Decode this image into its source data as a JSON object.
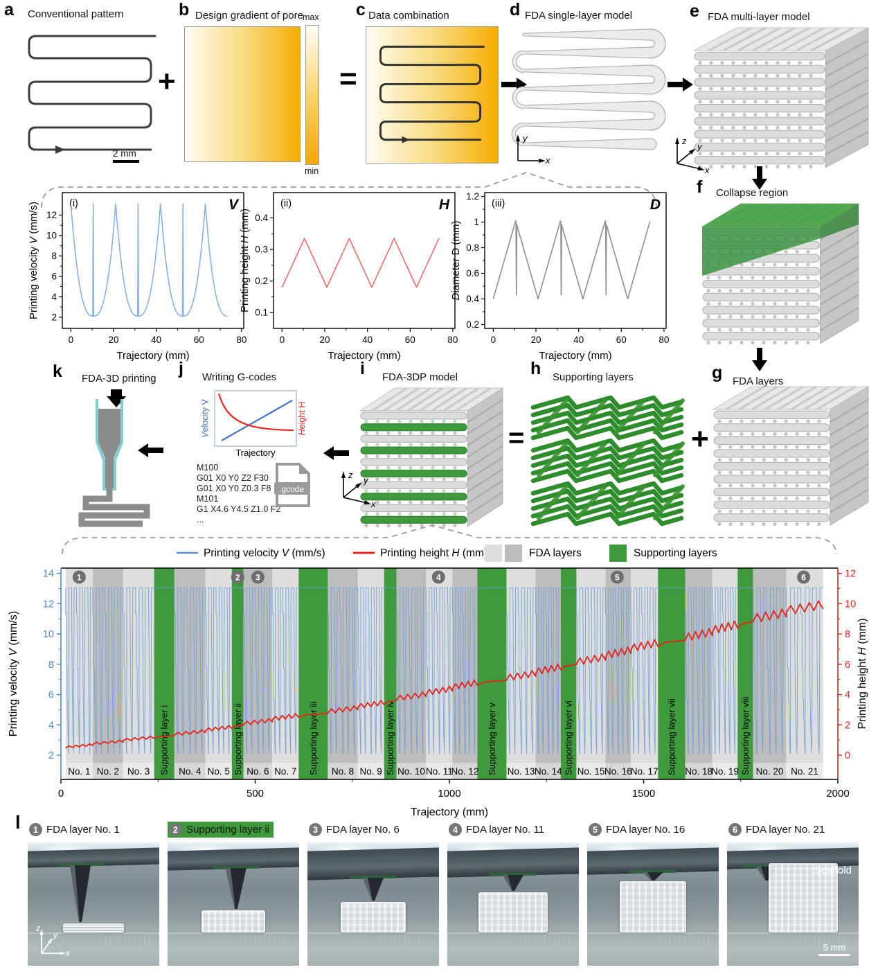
{
  "ops": {
    "plus": "+",
    "equals": "="
  },
  "panels": {
    "a": {
      "letter": "a",
      "title": "Conventional pattern",
      "scale_label": "2 mm"
    },
    "b": {
      "letter": "b",
      "title": "Design gradient of pore",
      "colorbar": {
        "max": "max",
        "min": "min"
      }
    },
    "c": {
      "letter": "c",
      "title": "Data combination"
    },
    "d": {
      "letter": "d",
      "title": "FDA single-layer model",
      "axes": {
        "x": "x",
        "y": "y"
      }
    },
    "e": {
      "letter": "e",
      "title": "FDA multi-layer model",
      "axes": {
        "x": "x",
        "y": "y",
        "z": "z"
      }
    },
    "f": {
      "letter": "f",
      "title": "Collapse region"
    },
    "g": {
      "letter": "g",
      "title": "FDA layers"
    },
    "h": {
      "letter": "h",
      "title": "Supporting layers"
    },
    "i": {
      "letter": "i",
      "title": "FDA-3DP model",
      "axes": {
        "x": "x",
        "y": "y",
        "z": "z"
      }
    },
    "j": {
      "letter": "j",
      "title": "Writing G-codes",
      "mini_chart": {
        "left_label": "Velocity V",
        "left_var": "V",
        "right_label": "Height H",
        "right_var": "H",
        "xlabel": "Trajectory"
      },
      "gcode_lines": [
        "M100",
        "G01 X0 Y0 Z2 F30",
        "G01 X0 Y0 Z0.3 F8",
        "M101",
        "G1 X4.6 Y4.5 Z1.0 F2",
        "..."
      ],
      "file_label": ".gcode"
    },
    "k": {
      "letter": "k",
      "title": "FDA-3D printing"
    },
    "l": {
      "letter": "l",
      "items": [
        {
          "num": "1",
          "label": "FDA layer No. 1",
          "highlight": false
        },
        {
          "num": "2",
          "label": "Supporting layer ii",
          "highlight": true
        },
        {
          "num": "3",
          "label": "FDA layer No. 6",
          "highlight": false
        },
        {
          "num": "4",
          "label": "FDA layer No. 11",
          "highlight": false
        },
        {
          "num": "5",
          "label": "FDA layer No. 16",
          "highlight": false
        },
        {
          "num": "6",
          "label": "FDA layer No. 21",
          "highlight": false
        }
      ],
      "scaffold_label": "Scaffold",
      "scale_label": "5 mm",
      "axes": {
        "x": "x",
        "y": "y",
        "z": "z"
      }
    }
  },
  "colors": {
    "gradient_light": "#fffdf3",
    "gradient_dark": "#f5ad00",
    "green": "#3e9a3c",
    "band_light": "#dedede",
    "band_dark": "#bcbcbc",
    "velocity_blue": "#6f9fd8",
    "height_red": "#e8231a",
    "height_pink": "#f16a6a",
    "diameter_gray": "#8f8f8f"
  },
  "chart_data": [
    {
      "id": "panel_i_velocity",
      "type": "line",
      "tag": "(i)",
      "corner_label": "V",
      "xlabel": "Trajectory (mm)",
      "ylabel": "Printing velocity V (mm/s)",
      "ylabel_var": "V",
      "xlim": [
        -4,
        81
      ],
      "ylim": [
        0.9,
        14.2
      ],
      "xticks": [
        0,
        20,
        40,
        60,
        80
      ],
      "yticks": [
        2,
        4,
        6,
        8,
        10,
        12
      ],
      "line_color": "#88b1e2",
      "waveform": {
        "shape": "exp-valley",
        "period_mm": 21,
        "x_end": 73.5,
        "v_max": 13.1,
        "v_min": 2.1,
        "peaks_at": [
          0,
          21,
          42,
          63
        ],
        "valley_spikes_at": [
          10.5,
          31.5,
          52.5
        ]
      }
    },
    {
      "id": "panel_ii_height",
      "type": "line",
      "tag": "(ii)",
      "corner_label": "H",
      "xlabel": "Trajectory (mm)",
      "ylabel": "Printing height H (mm)",
      "ylabel_var": "H",
      "xlim": [
        -4,
        81
      ],
      "ylim": [
        0.05,
        0.48
      ],
      "xticks": [
        0,
        20,
        40,
        60,
        80
      ],
      "yticks": [
        0.1,
        0.2,
        0.3,
        0.4
      ],
      "line_color": "#f16a6a",
      "waveform": {
        "shape": "triangle",
        "period_mm": 21,
        "x_end": 73.5,
        "min": 0.18,
        "max": 0.335,
        "peaks_at": [
          10.5,
          31.5,
          52.5,
          73.5
        ]
      }
    },
    {
      "id": "panel_iii_diameter",
      "type": "line",
      "tag": "(iii)",
      "corner_label": "D",
      "xlabel": "Trajectory (mm)",
      "ylabel": "Diameter D (mm)",
      "ylabel_var": "D",
      "xlim": [
        -4,
        81
      ],
      "ylim": [
        0.17,
        1.23
      ],
      "xticks": [
        0,
        20,
        40,
        60,
        80
      ],
      "yticks": [
        0.2,
        0.4,
        0.6,
        0.8,
        1.0,
        1.2
      ],
      "line_color": "#8f8f8f",
      "waveform": {
        "shape": "triangle-with-dip",
        "period_mm": 21,
        "x_end": 73.5,
        "min": 0.4,
        "max": 1.01,
        "peaks_at": [
          10.5,
          31.5,
          52.5,
          73.5
        ],
        "dip_after_peak": true
      }
    },
    {
      "id": "print_sequence",
      "type": "line",
      "xlabel": "Trajectory (mm)",
      "ylabel_left": "Printing velocity V (mm/s)",
      "ylabel_left_var": "V",
      "ylabel_right": "Printing height H (mm)",
      "ylabel_right_var": "H",
      "xlim": [
        0,
        2000
      ],
      "xticks": [
        0,
        500,
        1000,
        1500,
        2000
      ],
      "yticks_left": [
        2,
        4,
        6,
        8,
        10,
        12,
        14
      ],
      "yticks_right": [
        0,
        2,
        4,
        6,
        8,
        10,
        12
      ],
      "legend": [
        {
          "label": "Printing velocity V (mm/s)",
          "var": "V",
          "color": "#5b8fd4",
          "type": "line"
        },
        {
          "label": "Printing height H (mm)",
          "var": "H",
          "color": "#e8231a",
          "type": "line"
        },
        {
          "label": "FDA layers",
          "swatches": [
            "#dedede",
            "#bcbcbc"
          ],
          "type": "swatch2"
        },
        {
          "label": "Supporting layers",
          "swatches": [
            "#3e9a3c"
          ],
          "type": "swatch"
        }
      ],
      "markers": [
        {
          "num": "1",
          "x_mm": 47
        },
        {
          "num": "2",
          "x_mm": 455
        },
        {
          "num": "3",
          "x_mm": 507
        },
        {
          "num": "4",
          "x_mm": 972
        },
        {
          "num": "5",
          "x_mm": 1432
        },
        {
          "num": "6",
          "x_mm": 1912
        }
      ],
      "bands": [
        {
          "label": "No. 1",
          "type": "fda",
          "shade": "light",
          "start_mm": 12,
          "end_mm": 82
        },
        {
          "label": "No. 2",
          "type": "fda",
          "shade": "dark",
          "start_mm": 82,
          "end_mm": 160
        },
        {
          "label": "No. 3",
          "type": "fda",
          "shade": "light",
          "start_mm": 160,
          "end_mm": 240
        },
        {
          "label": "Supporting layer i",
          "type": "support",
          "start_mm": 240,
          "end_mm": 292
        },
        {
          "label": "No. 4",
          "type": "fda",
          "shade": "dark",
          "start_mm": 292,
          "end_mm": 372
        },
        {
          "label": "No. 5",
          "type": "fda",
          "shade": "light",
          "start_mm": 372,
          "end_mm": 440
        },
        {
          "label": "Supporting layer ii",
          "type": "support",
          "start_mm": 440,
          "end_mm": 470
        },
        {
          "label": "No. 6",
          "type": "fda",
          "shade": "dark",
          "start_mm": 470,
          "end_mm": 544
        },
        {
          "label": "No. 7",
          "type": "fda",
          "shade": "light",
          "start_mm": 544,
          "end_mm": 612
        },
        {
          "label": "Supporting layer iii",
          "type": "support",
          "start_mm": 612,
          "end_mm": 687
        },
        {
          "label": "No. 8",
          "type": "fda",
          "shade": "dark",
          "start_mm": 687,
          "end_mm": 764
        },
        {
          "label": "No. 9",
          "type": "fda",
          "shade": "light",
          "start_mm": 764,
          "end_mm": 832
        },
        {
          "label": "Supporting layer iv",
          "type": "support",
          "start_mm": 832,
          "end_mm": 864
        },
        {
          "label": "No. 10",
          "type": "fda",
          "shade": "dark",
          "start_mm": 864,
          "end_mm": 940
        },
        {
          "label": "No. 11",
          "type": "fda",
          "shade": "light",
          "start_mm": 940,
          "end_mm": 1008
        },
        {
          "label": "No. 12",
          "type": "fda",
          "shade": "dark",
          "start_mm": 1008,
          "end_mm": 1072
        },
        {
          "label": "Supporting layer v",
          "type": "support",
          "start_mm": 1072,
          "end_mm": 1147
        },
        {
          "label": "No. 13",
          "type": "fda",
          "shade": "light",
          "start_mm": 1147,
          "end_mm": 1222
        },
        {
          "label": "No. 14",
          "type": "fda",
          "shade": "dark",
          "start_mm": 1222,
          "end_mm": 1287
        },
        {
          "label": "Supporting layer vi",
          "type": "support",
          "start_mm": 1287,
          "end_mm": 1327
        },
        {
          "label": "No. 15",
          "type": "fda",
          "shade": "light",
          "start_mm": 1327,
          "end_mm": 1402
        },
        {
          "label": "No. 16",
          "type": "fda",
          "shade": "dark",
          "start_mm": 1402,
          "end_mm": 1467
        },
        {
          "label": "No. 17",
          "type": "fda",
          "shade": "light",
          "start_mm": 1467,
          "end_mm": 1537
        },
        {
          "label": "Supporting layer vii",
          "type": "support",
          "start_mm": 1537,
          "end_mm": 1607
        },
        {
          "label": "No. 18",
          "type": "fda",
          "shade": "dark",
          "start_mm": 1607,
          "end_mm": 1677
        },
        {
          "label": "No. 19",
          "type": "fda",
          "shade": "light",
          "start_mm": 1677,
          "end_mm": 1742
        },
        {
          "label": "Supporting layer viii",
          "type": "support",
          "start_mm": 1742,
          "end_mm": 1782
        },
        {
          "label": "No. 20",
          "type": "fda",
          "shade": "dark",
          "start_mm": 1782,
          "end_mm": 1867
        },
        {
          "label": "No. 21",
          "type": "fda",
          "shade": "light",
          "start_mm": 1867,
          "end_mm": 1962
        }
      ],
      "velocity_profile": {
        "v_top": 13.05,
        "v_min": 2.1,
        "spikes_per_fda_band": 5,
        "step_levels": [
          11.35,
          7.75,
          5.65,
          4.35,
          3.35,
          2.6
        ]
      },
      "height_profile": {
        "start_value": 0.45,
        "end_value": 9.9
      }
    }
  ]
}
